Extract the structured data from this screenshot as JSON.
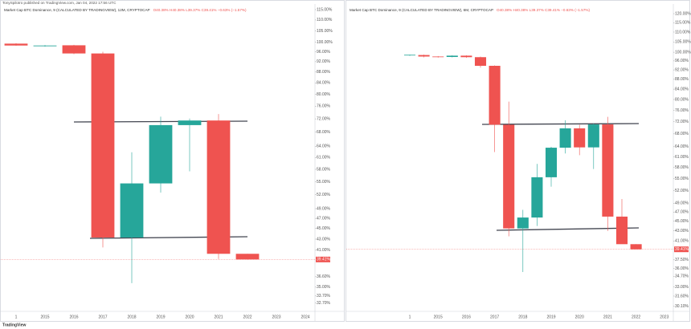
{
  "header": "TonySpilotro published on TradingView.com, Jan 04, 2022 17:56 UTC",
  "footer": "TradingView",
  "chart_data": [
    {
      "type": "candlestick",
      "title": "Market Cap BTC Dominance, 9 (CALCULATED BY TRADINGVIEW), 12M, CRYPTOCAP",
      "ohlc_text": "O40.38% H40.38% L39.37% C39.41% −0.63% (−1.57%)",
      "categories": [
        "1",
        "2015",
        "2016",
        "2017",
        "2018",
        "2019",
        "2020",
        "2021",
        "2022",
        "2023",
        "2024"
      ],
      "open": [
        99.4,
        98.3,
        98.7,
        95.3,
        43.3,
        54.6,
        70.1,
        71.5,
        40.38,
        null,
        null
      ],
      "high": [
        99.6,
        98.8,
        98.9,
        96.0,
        62.4,
        72.7,
        72.1,
        73.5,
        40.38,
        null,
        null
      ],
      "low": [
        98.5,
        98.1,
        95.0,
        41.5,
        35.6,
        52.5,
        57.5,
        39.5,
        39.37,
        null,
        null
      ],
      "close": [
        98.6,
        98.6,
        95.3,
        43.3,
        54.6,
        70.1,
        71.5,
        40.38,
        39.41,
        null,
        null
      ],
      "up_color": "#26a69a",
      "down_color": "#ef5350",
      "log_scale": true,
      "grid": false,
      "ylim": [
        32.1,
        117.8
      ],
      "yticks": [
        {
          "value": 115,
          "label": "115.00%"
        },
        {
          "value": 110,
          "label": "110.00%"
        },
        {
          "value": 105,
          "label": "105.00%"
        },
        {
          "value": 100,
          "label": "100.00%"
        },
        {
          "value": 96,
          "label": "96.00%"
        },
        {
          "value": 92,
          "label": "92.00%"
        },
        {
          "value": 88,
          "label": "88.00%"
        },
        {
          "value": 84,
          "label": "84.00%"
        },
        {
          "value": 80,
          "label": "80.00%"
        },
        {
          "value": 76,
          "label": "76.00%"
        },
        {
          "value": 72,
          "label": "72.00%"
        },
        {
          "value": 68,
          "label": "68.00%"
        },
        {
          "value": 64,
          "label": "64.00%"
        },
        {
          "value": 61,
          "label": "61.00%"
        },
        {
          "value": 58,
          "label": "58.00%"
        },
        {
          "value": 55,
          "label": "55.00%"
        },
        {
          "value": 52,
          "label": "52.00%"
        },
        {
          "value": 49,
          "label": "49.00%"
        },
        {
          "value": 47,
          "label": "47.00%"
        },
        {
          "value": 45,
          "label": "45.00%"
        },
        {
          "value": 43,
          "label": "43.00%"
        },
        {
          "value": 41,
          "label": "41.00%"
        },
        {
          "value": 36.6,
          "label": "36.60%"
        },
        {
          "value": 35,
          "label": "35.00%"
        },
        {
          "value": 33.7,
          "label": "33.70%"
        },
        {
          "value": 32.7,
          "label": "32.70%"
        }
      ],
      "last_price": {
        "value": 39.41,
        "label": "39.41%"
      }
    },
    {
      "type": "candlestick",
      "title": "Market Cap BTC Dominance, 9 (CALCULATED BY TRADINGVIEW), 6M, CRYPTOCAP",
      "ohlc_text": "O40.38% H40.38% L39.37% C39.41% −0.63% (−1.57%)",
      "categories": [
        "1",
        null,
        "2015",
        null,
        "2016",
        null,
        "2017",
        null,
        "2018",
        null,
        "2019",
        null,
        "2020",
        null,
        "2021",
        null,
        "2022",
        null,
        "2023"
      ],
      "open": [
        98.5,
        98.7,
        98.0,
        97.8,
        98.4,
        97.7,
        93.8,
        71.0,
        43.5,
        45.8,
        55.4,
        63.7,
        69.8,
        63.8,
        71.1,
        46.0,
        40.38,
        null,
        null
      ],
      "high": [
        98.9,
        98.9,
        98.2,
        98.6,
        98.6,
        98.0,
        94.0,
        79.2,
        47.5,
        59.0,
        64.0,
        72.5,
        71.0,
        71.5,
        73.7,
        50.0,
        40.38,
        null,
        null
      ],
      "low": [
        98.3,
        97.6,
        97.5,
        97.6,
        97.4,
        93.0,
        62.4,
        41.9,
        35.4,
        44.0,
        53.0,
        62.0,
        61.5,
        57.6,
        43.0,
        40.5,
        39.37,
        null,
        null
      ],
      "close": [
        98.8,
        98.0,
        97.8,
        98.4,
        97.7,
        93.8,
        71.0,
        43.5,
        45.8,
        55.4,
        63.7,
        69.8,
        63.8,
        71.1,
        46.0,
        40.38,
        39.41,
        null,
        null
      ],
      "up_color": "#26a69a",
      "down_color": "#ef5350",
      "log_scale": true,
      "grid": false,
      "ylim": [
        29.4,
        125.6
      ],
      "yticks": [
        {
          "value": 120,
          "label": "120.00%"
        },
        {
          "value": 115,
          "label": "115.00%"
        },
        {
          "value": 110,
          "label": "110.00%"
        },
        {
          "value": 105,
          "label": "105.00%"
        },
        {
          "value": 100,
          "label": "100.00%"
        },
        {
          "value": 96,
          "label": "96.00%"
        },
        {
          "value": 92,
          "label": "92.00%"
        },
        {
          "value": 88,
          "label": "88.00%"
        },
        {
          "value": 84,
          "label": "84.00%"
        },
        {
          "value": 80,
          "label": "80.00%"
        },
        {
          "value": 76,
          "label": "76.00%"
        },
        {
          "value": 72,
          "label": "72.00%"
        },
        {
          "value": 68,
          "label": "68.00%"
        },
        {
          "value": 64,
          "label": "64.00%"
        },
        {
          "value": 61,
          "label": "61.00%"
        },
        {
          "value": 58,
          "label": "58.00%"
        },
        {
          "value": 55,
          "label": "55.00%"
        },
        {
          "value": 52,
          "label": "52.00%"
        },
        {
          "value": 49,
          "label": "49.00%"
        },
        {
          "value": 47,
          "label": "47.00%"
        },
        {
          "value": 45,
          "label": "45.00%"
        },
        {
          "value": 43,
          "label": "43.00%"
        },
        {
          "value": 41,
          "label": "41.00%"
        },
        {
          "value": 37.5,
          "label": "37.50%"
        },
        {
          "value": 36,
          "label": "36.00%"
        },
        {
          "value": 34.7,
          "label": "34.70%"
        },
        {
          "value": 33,
          "label": "33.00%"
        },
        {
          "value": 31.6,
          "label": "31.60%"
        },
        {
          "value": 30.1,
          "label": "30.10%"
        }
      ],
      "last_price": {
        "value": 39.41,
        "label": "39.41%"
      }
    }
  ]
}
